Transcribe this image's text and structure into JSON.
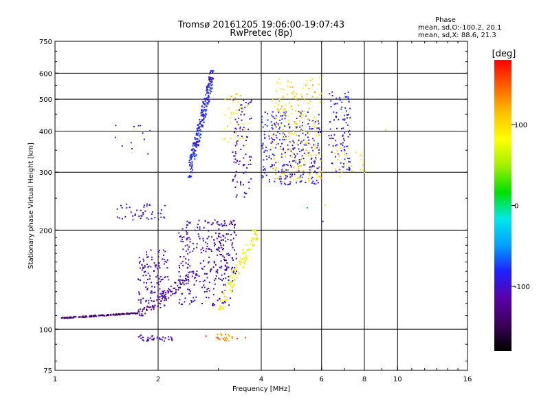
{
  "title_line1": "Tromsø 20161205 19:06:00-19:07:43",
  "title_line2": "RwPretec (8p)",
  "phase_stats": {
    "heading": "Phase",
    "line_o": "mean, sd,O:-100.2, 20.1",
    "line_x": "mean, sd,X:  88.6, 21.3"
  },
  "chart_data": {
    "type": "scatter",
    "xlabel": "Frequency [MHz]",
    "ylabel": "Stationary phase Virtual Height [km]",
    "x_scale": "log",
    "y_scale": "log",
    "xlim": [
      1,
      16
    ],
    "ylim": [
      75,
      750
    ],
    "x_ticks": [
      1,
      2,
      4,
      6,
      8,
      10,
      16
    ],
    "x_tick_labels": [
      "1",
      "2",
      "4",
      "6",
      "8",
      "10",
      "16"
    ],
    "x_grid": [
      2,
      4,
      6,
      8,
      10
    ],
    "y_ticks": [
      75,
      100,
      200,
      300,
      400,
      500,
      600,
      750
    ],
    "y_tick_labels": [
      "75",
      "100",
      "200",
      "300",
      "400",
      "500",
      "600",
      "750"
    ],
    "y_grid": [
      100,
      200,
      300,
      400,
      500,
      600
    ],
    "grid": true,
    "colorbar": {
      "label": "[deg]",
      "range": [
        -180,
        180
      ],
      "ticks": [
        100,
        0,
        -100
      ],
      "tick_labels": [
        "100",
        "0",
        "-100"
      ],
      "colors": [
        "#000000",
        "#3c0058",
        "#5a00a8",
        "#2020ff",
        "#00a0ff",
        "#00e8e8",
        "#00e000",
        "#a0f000",
        "#ffff00",
        "#ffc000",
        "#ff6000",
        "#ff0000"
      ]
    },
    "clusters": [
      {
        "n": 150,
        "x": [
          1.04,
          1.75
        ],
        "y": [
          108,
          112
        ],
        "c": [
          -150,
          -125
        ],
        "trace": true
      },
      {
        "n": 110,
        "x": [
          1.75,
          2.6
        ],
        "y": [
          110,
          150
        ],
        "c": [
          -140,
          -100
        ],
        "trace": true
      },
      {
        "n": 120,
        "x": [
          1.75,
          2.15
        ],
        "y": [
          115,
          175
        ],
        "c": [
          -120,
          -90
        ]
      },
      {
        "n": 260,
        "x": [
          2.3,
          3.35
        ],
        "y": [
          118,
          215
        ],
        "c": [
          -125,
          -85
        ]
      },
      {
        "n": 60,
        "x": [
          2.9,
          3.4
        ],
        "y": [
          140,
          215
        ],
        "c": [
          -150,
          -120
        ]
      },
      {
        "n": 110,
        "x": [
          3.0,
          3.9
        ],
        "y": [
          115,
          200
        ],
        "c": [
          60,
          110
        ],
        "trace": true
      },
      {
        "n": 45,
        "x": [
          1.5,
          2.1
        ],
        "y": [
          215,
          240
        ],
        "c": [
          -110,
          -80
        ]
      },
      {
        "n": 12,
        "x": [
          1.5,
          1.9
        ],
        "y": [
          340,
          420
        ],
        "c": [
          -110,
          -80
        ]
      },
      {
        "n": 260,
        "x": [
          2.45,
          2.9
        ],
        "y": [
          290,
          610
        ],
        "c": [
          -110,
          -60
        ],
        "trace": true
      },
      {
        "n": 90,
        "x": [
          3.3,
          3.75
        ],
        "y": [
          250,
          500
        ],
        "c": [
          -130,
          -90
        ]
      },
      {
        "n": 40,
        "x": [
          3.1,
          3.7
        ],
        "y": [
          360,
          520
        ],
        "c": [
          60,
          120
        ]
      },
      {
        "n": 280,
        "x": [
          4.0,
          6.0
        ],
        "y": [
          275,
          460
        ],
        "c": [
          -110,
          -70
        ]
      },
      {
        "n": 200,
        "x": [
          4.3,
          6.0
        ],
        "y": [
          280,
          580
        ],
        "c": [
          70,
          130
        ]
      },
      {
        "n": 100,
        "x": [
          6.3,
          7.3
        ],
        "y": [
          300,
          530
        ],
        "c": [
          -110,
          -70
        ]
      },
      {
        "n": 25,
        "x": [
          6.5,
          8.0
        ],
        "y": [
          290,
          360
        ],
        "c": [
          80,
          120
        ]
      },
      {
        "n": 35,
        "x": [
          1.75,
          2.2
        ],
        "y": [
          92,
          96
        ],
        "c": [
          -115,
          -95
        ]
      },
      {
        "n": 22,
        "x": [
          2.95,
          3.3
        ],
        "y": [
          92,
          97
        ],
        "c": [
          115,
          140
        ]
      },
      {
        "n": 6,
        "x": [
          2.3,
          3.6
        ],
        "y": [
          93,
          98
        ],
        "c": [
          150,
          170
        ]
      },
      {
        "n": 6,
        "x": [
          3.8,
          11.0
        ],
        "y": [
          120,
          640
        ],
        "c": [
          -100,
          170
        ]
      }
    ]
  }
}
